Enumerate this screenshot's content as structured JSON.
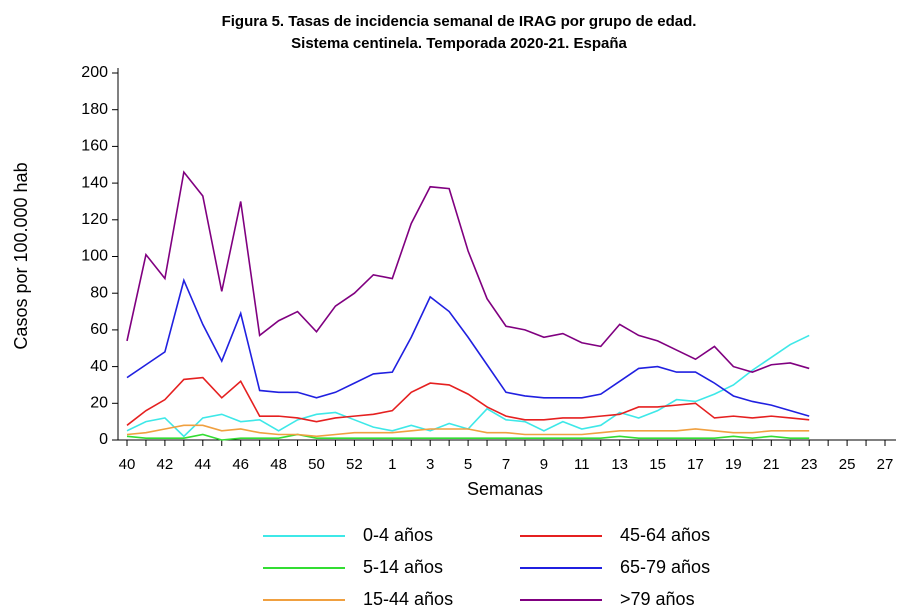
{
  "chart_data": {
    "type": "line",
    "title": [
      "Figura 5. Tasas de incidencia semanal de IRAG por grupo de edad.",
      "Sistema centinela. Temporada 2020-21. España"
    ],
    "x_label": "Semanas",
    "y_label": "Casos por 100.000 hab",
    "categories": [
      40,
      null,
      42,
      null,
      44,
      null,
      46,
      null,
      48,
      null,
      50,
      null,
      52,
      null,
      1,
      null,
      3,
      null,
      5,
      null,
      7,
      null,
      9,
      null,
      11,
      null,
      13,
      null,
      15,
      null,
      17,
      null,
      19,
      null,
      21,
      null,
      23,
      null,
      25,
      null,
      27
    ],
    "ylim": [
      0,
      200
    ],
    "yticks": [
      0,
      20,
      40,
      60,
      80,
      100,
      120,
      140,
      160,
      180,
      200
    ],
    "series": [
      {
        "name": "0-4 años",
        "color": "#3ee8e8",
        "values": [
          5,
          10,
          12,
          2,
          12,
          14,
          10,
          11,
          5,
          11,
          14,
          15,
          11,
          7,
          5,
          8,
          5,
          9,
          6,
          17,
          11,
          10,
          5,
          10,
          6,
          8,
          15,
          12,
          16,
          22,
          21,
          25,
          30,
          38,
          45,
          52,
          57,
          null,
          null,
          null,
          null
        ]
      },
      {
        "name": "5-14 años",
        "color": "#33dd33",
        "values": [
          2,
          1,
          1,
          1,
          3,
          0,
          1,
          1,
          1,
          3,
          1,
          1,
          1,
          1,
          1,
          1,
          1,
          1,
          1,
          1,
          1,
          1,
          1,
          1,
          1,
          1,
          2,
          1,
          1,
          1,
          1,
          1,
          2,
          1,
          2,
          1,
          1,
          null,
          null,
          null,
          null
        ]
      },
      {
        "name": "15-44 años",
        "color": "#f0a040",
        "values": [
          3,
          4,
          6,
          8,
          8,
          5,
          6,
          4,
          3,
          3,
          2,
          3,
          4,
          4,
          4,
          5,
          6,
          6,
          6,
          4,
          4,
          3,
          3,
          3,
          3,
          4,
          5,
          5,
          5,
          5,
          6,
          5,
          4,
          4,
          5,
          5,
          5,
          null,
          null,
          null,
          null
        ]
      },
      {
        "name": "45-64 años",
        "color": "#e52020",
        "values": [
          8,
          16,
          22,
          33,
          34,
          23,
          32,
          13,
          13,
          12,
          10,
          12,
          13,
          14,
          16,
          26,
          31,
          30,
          25,
          18,
          13,
          11,
          11,
          12,
          12,
          13,
          14,
          18,
          18,
          19,
          20,
          12,
          13,
          12,
          13,
          12,
          11,
          null,
          null,
          null,
          null
        ]
      },
      {
        "name": "65-79 años",
        "color": "#2020e0",
        "values": [
          34,
          41,
          48,
          87,
          63,
          43,
          69,
          27,
          26,
          26,
          23,
          26,
          31,
          36,
          37,
          56,
          78,
          70,
          56,
          41,
          26,
          24,
          23,
          23,
          23,
          25,
          32,
          39,
          40,
          37,
          37,
          31,
          24,
          21,
          19,
          16,
          13,
          null,
          null,
          null,
          null
        ]
      },
      {
        "name": ">79 años",
        "color": "#800080",
        "values": [
          54,
          101,
          88,
          146,
          133,
          81,
          130,
          57,
          65,
          70,
          59,
          73,
          80,
          90,
          88,
          118,
          138,
          137,
          103,
          77,
          62,
          60,
          56,
          58,
          53,
          51,
          63,
          57,
          54,
          49,
          44,
          51,
          40,
          37,
          41,
          42,
          39,
          null,
          null,
          null,
          null
        ]
      }
    ]
  }
}
